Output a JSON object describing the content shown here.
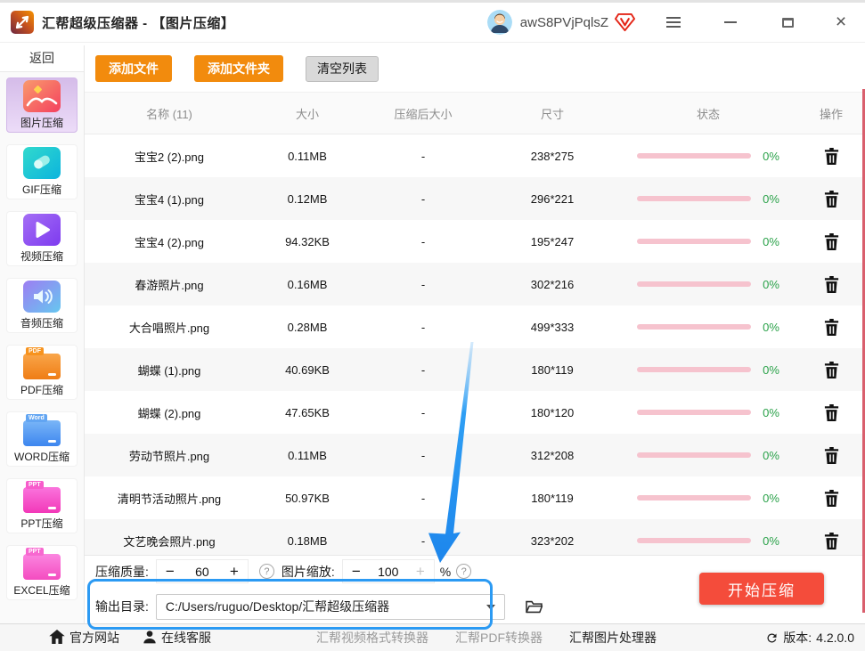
{
  "window": {
    "title": "汇帮超级压缩器 - 【图片压缩】",
    "username": "awS8PVjPqlsZ",
    "close_glyph": "×"
  },
  "toolbar": {
    "add_file": "添加文件",
    "add_folder": "添加文件夹",
    "clear_list": "清空列表"
  },
  "sidebar": {
    "back": "返回",
    "items": [
      {
        "label": "图片压缩",
        "icon": "image",
        "selected": true
      },
      {
        "label": "GIF压缩",
        "icon": "gif"
      },
      {
        "label": "视频压缩",
        "icon": "video"
      },
      {
        "label": "音频压缩",
        "icon": "audio"
      },
      {
        "label": "PDF压缩",
        "icon": "folder",
        "tag": "PDF",
        "color": "orange"
      },
      {
        "label": "WORD压缩",
        "icon": "folder",
        "tag": "Word",
        "color": "blue"
      },
      {
        "label": "PPT压缩",
        "icon": "folder",
        "tag": "PPT",
        "color": "magenta"
      },
      {
        "label": "EXCEL压缩",
        "icon": "folder",
        "tag": "PPT",
        "color": "pink"
      }
    ]
  },
  "table": {
    "columns": [
      "名称 (11)",
      "大小",
      "压缩后大小",
      "尺寸",
      "状态",
      "操作"
    ],
    "rows": [
      {
        "name": "宝宝2 (2).png",
        "size": "0.11MB",
        "compressed": "-",
        "dimensions": "238*275",
        "progress": "0%"
      },
      {
        "name": "宝宝4 (1).png",
        "size": "0.12MB",
        "compressed": "-",
        "dimensions": "296*221",
        "progress": "0%"
      },
      {
        "name": "宝宝4 (2).png",
        "size": "94.32KB",
        "compressed": "-",
        "dimensions": "195*247",
        "progress": "0%"
      },
      {
        "name": "春游照片.png",
        "size": "0.16MB",
        "compressed": "-",
        "dimensions": "302*216",
        "progress": "0%"
      },
      {
        "name": "大合唱照片.png",
        "size": "0.28MB",
        "compressed": "-",
        "dimensions": "499*333",
        "progress": "0%"
      },
      {
        "name": "蝴蝶 (1).png",
        "size": "40.69KB",
        "compressed": "-",
        "dimensions": "180*119",
        "progress": "0%"
      },
      {
        "name": "蝴蝶 (2).png",
        "size": "47.65KB",
        "compressed": "-",
        "dimensions": "180*120",
        "progress": "0%"
      },
      {
        "name": "劳动节照片.png",
        "size": "0.11MB",
        "compressed": "-",
        "dimensions": "312*208",
        "progress": "0%"
      },
      {
        "name": "清明节活动照片.png",
        "size": "50.97KB",
        "compressed": "-",
        "dimensions": "180*119",
        "progress": "0%"
      },
      {
        "name": "文艺晚会照片.png",
        "size": "0.18MB",
        "compressed": "-",
        "dimensions": "323*202",
        "progress": "0%"
      }
    ]
  },
  "controls": {
    "quality_label": "压缩质量:",
    "quality_value": "60",
    "scale_label": "图片缩放:",
    "scale_value": "100",
    "scale_unit": "%",
    "minus": "−",
    "plus": "+",
    "help_glyph": "?",
    "output_label": "输出目录:",
    "output_path": "C:/Users/ruguo/Desktop/汇帮超级压缩器",
    "start_button": "开始压缩"
  },
  "footer": {
    "links": [
      {
        "label": "官方网站",
        "icon": "home"
      },
      {
        "label": "在线客服",
        "icon": "person"
      },
      {
        "label": "汇帮视频格式转换器",
        "cls": "muted"
      },
      {
        "label": "汇帮PDF转换器",
        "cls": "muted"
      },
      {
        "label": "汇帮图片处理器"
      }
    ],
    "version_label": "版本:",
    "version_value": "4.2.0.0"
  },
  "colors": {
    "accent_orange": "#f28b0d",
    "start_red": "#f44c3b",
    "progress_pink": "#f6c3ce",
    "percent_green": "#2ba24a",
    "selected_purple": "#d5bce9",
    "annotation_blue": "#2b9af3"
  }
}
